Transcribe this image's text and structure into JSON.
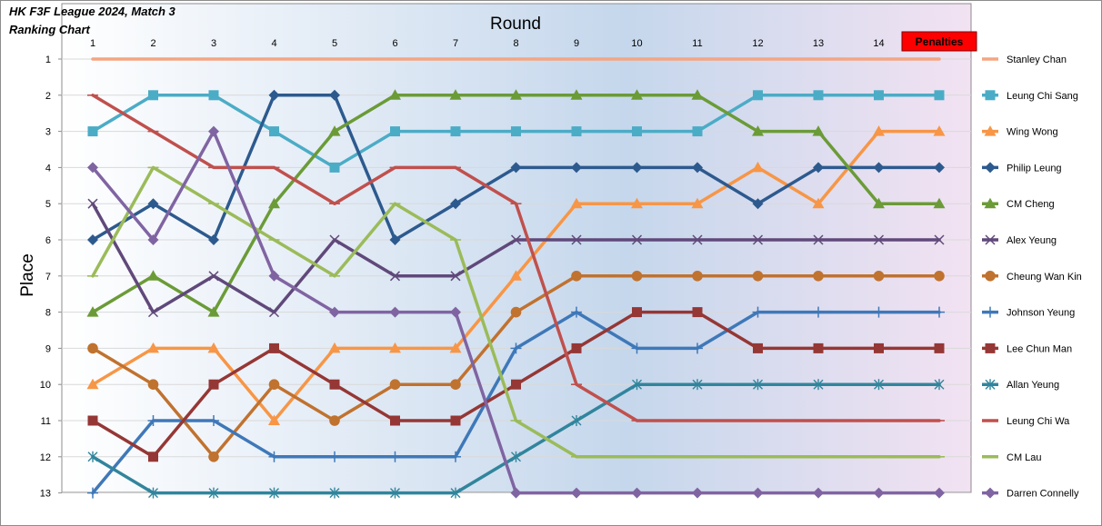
{
  "chart_data": {
    "type": "line",
    "title": "HK F3F League 2024, Match 3",
    "subtitle": "Ranking Chart",
    "xlabel": "Round",
    "ylabel": "Place",
    "categories": [
      "1",
      "2",
      "3",
      "4",
      "5",
      "6",
      "7",
      "8",
      "9",
      "10",
      "11",
      "12",
      "13",
      "14",
      "Penalties"
    ],
    "ylim": [
      1,
      13
    ],
    "y_reversed": true,
    "yticks": [
      1,
      2,
      3,
      4,
      5,
      6,
      7,
      8,
      9,
      10,
      11,
      12,
      13
    ],
    "legend_position": "right",
    "highlight_category": {
      "label": "Penalties",
      "color": "#ff0000"
    },
    "series": [
      {
        "name": "Stanley Chan",
        "color": "#f4a582",
        "marker": "none",
        "values": [
          1,
          1,
          1,
          1,
          1,
          1,
          1,
          1,
          1,
          1,
          1,
          1,
          1,
          1,
          1
        ]
      },
      {
        "name": "Leung Chi Sang",
        "color": "#4bacc6",
        "marker": "square",
        "values": [
          3,
          2,
          2,
          3,
          4,
          3,
          3,
          3,
          3,
          3,
          3,
          2,
          2,
          2,
          2
        ]
      },
      {
        "name": "Wing Wong",
        "color": "#f79646",
        "marker": "triangle",
        "values": [
          10,
          9,
          9,
          11,
          9,
          9,
          9,
          7,
          5,
          5,
          5,
          4,
          5,
          3,
          3
        ]
      },
      {
        "name": "Philip Leung",
        "color": "#2d5a8e",
        "marker": "diamond",
        "values": [
          6,
          5,
          6,
          2,
          2,
          6,
          5,
          4,
          4,
          4,
          4,
          5,
          4,
          4,
          4
        ]
      },
      {
        "name": "CM Cheng",
        "color": "#6b9b37",
        "marker": "triangle",
        "values": [
          8,
          7,
          8,
          5,
          3,
          2,
          2,
          2,
          2,
          2,
          2,
          3,
          3,
          5,
          5
        ]
      },
      {
        "name": "Alex Yeung",
        "color": "#60497a",
        "marker": "x",
        "values": [
          5,
          8,
          7,
          8,
          6,
          7,
          7,
          6,
          6,
          6,
          6,
          6,
          6,
          6,
          6
        ]
      },
      {
        "name": "Cheung Wan Kin",
        "color": "#c0722f",
        "marker": "circle",
        "values": [
          9,
          10,
          12,
          10,
          11,
          10,
          10,
          8,
          7,
          7,
          7,
          7,
          7,
          7,
          7
        ]
      },
      {
        "name": "Johnson Yeung",
        "color": "#3f78b8",
        "marker": "plus",
        "values": [
          13,
          11,
          11,
          12,
          12,
          12,
          12,
          9,
          8,
          9,
          9,
          8,
          8,
          8,
          8
        ]
      },
      {
        "name": "Lee Chun Man",
        "color": "#953735",
        "marker": "square",
        "values": [
          11,
          12,
          10,
          9,
          10,
          11,
          11,
          10,
          9,
          8,
          8,
          9,
          9,
          9,
          9
        ]
      },
      {
        "name": "Allan Yeung",
        "color": "#31859c",
        "marker": "star",
        "values": [
          12,
          13,
          13,
          13,
          13,
          13,
          13,
          12,
          11,
          10,
          10,
          10,
          10,
          10,
          10
        ]
      },
      {
        "name": "Leung Chi Wa",
        "color": "#c0504d",
        "marker": "dash",
        "values": [
          2,
          3,
          4,
          4,
          5,
          4,
          4,
          5,
          10,
          11,
          11,
          11,
          11,
          11,
          11
        ]
      },
      {
        "name": "CM Lau",
        "color": "#9bbb59",
        "marker": "dash",
        "values": [
          7,
          4,
          5,
          6,
          7,
          5,
          6,
          11,
          12,
          12,
          12,
          12,
          12,
          12,
          12
        ]
      },
      {
        "name": "Darren Connelly",
        "color": "#8064a2",
        "marker": "diamond",
        "values": [
          4,
          6,
          3,
          7,
          8,
          8,
          8,
          13,
          13,
          13,
          13,
          13,
          13,
          13,
          13
        ]
      }
    ]
  }
}
